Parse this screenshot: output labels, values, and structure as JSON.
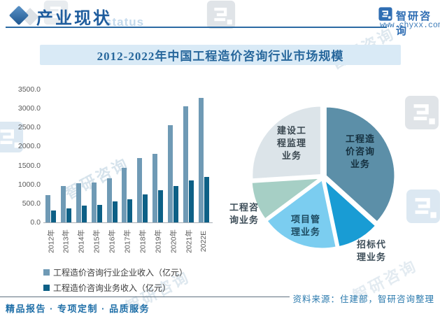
{
  "header": {
    "title": "产业现状",
    "status_watermark": "status",
    "logo": {
      "name": "智研咨询",
      "url": "www.chyxx.com"
    }
  },
  "chart_title": "2012-2022年中国工程造价咨询行业市场规模",
  "chart_data": [
    {
      "type": "bar",
      "title": "2012-2022年中国工程造价咨询行业市场规模",
      "categories": [
        "2012年",
        "2013年",
        "2014年",
        "2015年",
        "2016年",
        "2017年",
        "2018年",
        "2019年",
        "2020年",
        "2021年",
        "2022E"
      ],
      "series": [
        {
          "name": "工程造价咨询行业企业收入（亿元）",
          "color": "#6f9ab5",
          "values": [
            720,
            960,
            1040,
            1050,
            1170,
            1440,
            1700,
            1810,
            2560,
            3050,
            3280
          ]
        },
        {
          "name": "工程造价咨询业务收入（亿元）",
          "color": "#0d6086",
          "values": [
            315,
            370,
            440,
            470,
            555,
            615,
            730,
            855,
            965,
            1110,
            1190
          ]
        }
      ],
      "xlabel": "",
      "ylabel": "",
      "ylim": [
        0,
        3500
      ],
      "ytick_labels": [
        "0.0",
        "500.0",
        "1000.0",
        "1500.0",
        "2000.0",
        "2500.0",
        "3000.0",
        "3500.0"
      ],
      "grid": false,
      "legend_position": "bottom-left"
    },
    {
      "type": "pie",
      "start_angle_deg": 0,
      "clockwise": true,
      "slices": [
        {
          "label": "工程造价咨询业务",
          "percent": 36.7,
          "color": "#5c8fa8"
        },
        {
          "label": "招标代理业务",
          "percent": 10.0,
          "color": "#199cd4"
        },
        {
          "label": "项目管理业务",
          "percent": 18.1,
          "color": "#7bcdf0"
        },
        {
          "label": "工程咨询业务",
          "percent": 9.2,
          "color": "#a6cfc5"
        },
        {
          "label": "建设工程监理业务",
          "percent": 26.0,
          "color": "#dce4e9"
        }
      ]
    }
  ],
  "footer": {
    "source": "资料来源：住建部，智研咨询整理",
    "tagline": "精品报告 · 专项定制 · 品质服务"
  },
  "watermark_text": "智研咨询",
  "colors": {
    "accent": "#2b6aa3",
    "title_band_bg": "#d9eaf6",
    "title_text": "#27679c"
  }
}
